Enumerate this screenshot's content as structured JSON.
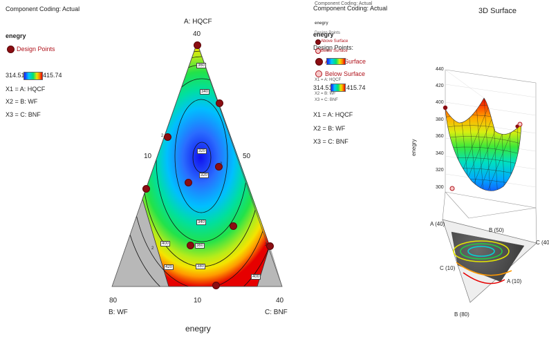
{
  "colors": {
    "low": "#1a1aff",
    "mid": "#00e070",
    "high": "#e00000",
    "points": "#8b0d12",
    "boundary": "#b8b8b8"
  },
  "left_panel": {
    "coding": "Component Coding: Actual",
    "response": "enegry",
    "design_points": "Design Points",
    "range_low": "314.51",
    "range_high": "415.74",
    "x1": "X1 = A: HQCF",
    "x2": "X2 = B: WF",
    "x3": "X3 = C: BNF"
  },
  "ternary": {
    "apex_a_label": "A: HQCF",
    "apex_a_value": "40",
    "left_edge_tick": "10",
    "right_edge_tick": "50",
    "corner_b_value": "80",
    "corner_b_label": "B: WF",
    "corner_c_value": "40",
    "corner_c_label": "C: BNF",
    "bottom_mid_tick": "10",
    "response_title": "enegry",
    "contour_labels": [
      "360",
      "340",
      "320",
      "320",
      "340",
      "360",
      "380",
      "400",
      "420",
      "400",
      "2",
      "2",
      "2",
      "2"
    ]
  },
  "right_legend": {
    "coding": "Component Coding: Actual",
    "ghost_coding": "Component Coding: Actual",
    "response": "enegry",
    "ghost_response": "enegry",
    "ghost_points": "Design Points",
    "design_points": "Design Points:",
    "above_surface": "Above Surface",
    "ghost_above": "Above Surface",
    "below_surface": "Below Surface",
    "ghost_below": "Below Surface",
    "range_low": "314.51",
    "range_high": "415.74",
    "ghost_x1": "X1 = A: HQCF",
    "ghost_x2": "X2 = B: WF",
    "ghost_x3": "X3 = C: BNF",
    "x1": "X1 = A: HQCF",
    "x2": "X2 = B: WF",
    "x3": "X3 = C: BNF"
  },
  "surface3d": {
    "title": "3D Surface",
    "zlabel": "enegry",
    "zticks": [
      "440",
      "420",
      "400",
      "380",
      "360",
      "340",
      "320",
      "300"
    ],
    "base_labels": [
      "A (40)",
      "B (50)",
      "C (40)",
      "C (10)",
      "A (10)",
      "B (80)"
    ]
  },
  "chart_data": [
    {
      "type": "contour",
      "title": "",
      "response": "enegry",
      "components": [
        "A: HQCF",
        "B: WF",
        "C: BNF"
      ],
      "ranges": {
        "A": [
          10,
          40
        ],
        "B": [
          10,
          80
        ],
        "C": [
          10,
          40
        ]
      },
      "zlim": [
        314.51,
        415.74
      ],
      "contour_levels": [
        320,
        340,
        360,
        380,
        400,
        420
      ]
    },
    {
      "type": "surface",
      "title": "3D Surface",
      "zlabel": "enegry",
      "zlim": [
        300,
        440
      ]
    }
  ]
}
